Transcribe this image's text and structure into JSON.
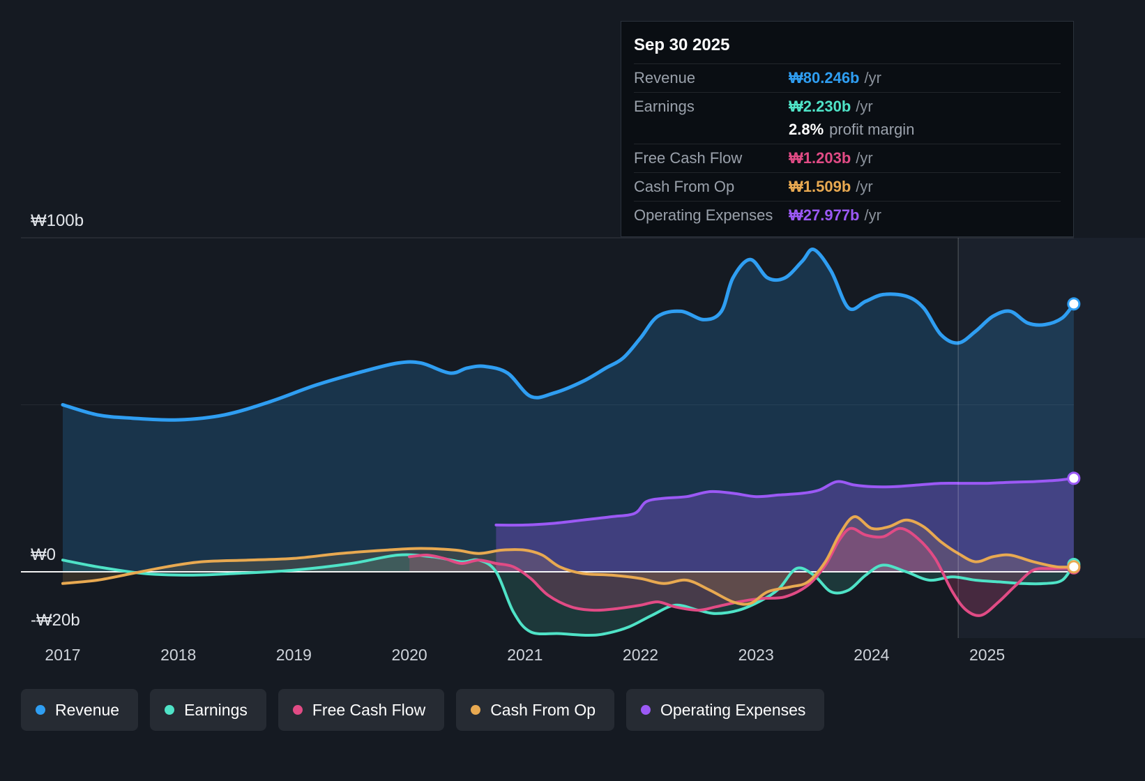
{
  "colors": {
    "background": "#151a22",
    "revenue": "#2f9ef2",
    "earnings": "#4fe3c7",
    "free_cash_flow": "#e14b85",
    "cash_from_op": "#e8a951",
    "operating_expenses": "#9b59f5"
  },
  "tooltip": {
    "date": "Sep 30 2025",
    "rows": [
      {
        "label": "Revenue",
        "value": "₩80.246b",
        "suffix": "/yr",
        "color": "#2f9ef2"
      },
      {
        "label": "Earnings",
        "value": "₩2.230b",
        "suffix": "/yr",
        "color": "#4fe3c7"
      },
      {
        "label": "Free Cash Flow",
        "value": "₩1.203b",
        "suffix": "/yr",
        "color": "#e14b85"
      },
      {
        "label": "Cash From Op",
        "value": "₩1.509b",
        "suffix": "/yr",
        "color": "#e8a951"
      },
      {
        "label": "Operating Expenses",
        "value": "₩27.977b",
        "suffix": "/yr",
        "color": "#9b59f5"
      }
    ],
    "margin": {
      "value": "2.8%",
      "label": "profit margin"
    }
  },
  "axes": {
    "y": [
      "₩100b",
      "₩0",
      "-₩20b"
    ],
    "x": [
      "2017",
      "2018",
      "2019",
      "2020",
      "2021",
      "2022",
      "2023",
      "2024",
      "2025"
    ]
  },
  "legend": {
    "items": [
      {
        "label": "Revenue",
        "color": "#2f9ef2"
      },
      {
        "label": "Earnings",
        "color": "#4fe3c7"
      },
      {
        "label": "Free Cash Flow",
        "color": "#e14b85"
      },
      {
        "label": "Cash From Op",
        "color": "#e8a951"
      },
      {
        "label": "Operating Expenses",
        "color": "#9b59f5"
      }
    ]
  },
  "chart_data": {
    "type": "line",
    "unit": "₩ billions per year",
    "x_range": [
      2017,
      2025.75
    ],
    "ylim": [
      -20,
      100
    ],
    "baseline": 0,
    "divider_x": 2024.75,
    "grid": "horizontal only",
    "legend_position": "bottom-left",
    "gridlines": [
      {
        "value": 100,
        "opacity": 0.14
      },
      {
        "value": 50,
        "opacity": 0.07
      }
    ],
    "series": [
      {
        "name": "Revenue",
        "color": "#2f9ef2",
        "fill_opacity": 0.2,
        "line_width": 5,
        "x": [
          2017.0,
          2017.3,
          2017.6,
          2018.0,
          2018.4,
          2018.8,
          2019.2,
          2019.6,
          2019.9,
          2020.1,
          2020.35,
          2020.5,
          2020.65,
          2020.85,
          2021.05,
          2021.25,
          2021.5,
          2021.7,
          2021.85,
          2022.0,
          2022.15,
          2022.35,
          2022.55,
          2022.7,
          2022.8,
          2022.95,
          2023.1,
          2023.25,
          2023.4,
          2023.5,
          2023.65,
          2023.8,
          2023.95,
          2024.1,
          2024.3,
          2024.45,
          2024.6,
          2024.75,
          2024.9,
          2025.05,
          2025.2,
          2025.35,
          2025.5,
          2025.65,
          2025.75
        ],
        "values": [
          50,
          47,
          46,
          45.5,
          47,
          51,
          56,
          60,
          62.5,
          62.5,
          59.5,
          61,
          61.5,
          59.5,
          52.5,
          53.5,
          57,
          61,
          64,
          70,
          76.5,
          78,
          75.5,
          78,
          88,
          93.5,
          88,
          88,
          93,
          96.5,
          90,
          79,
          81,
          83,
          82.5,
          79,
          71,
          68.5,
          72,
          76.5,
          78,
          74.5,
          74,
          76,
          80.2
        ]
      },
      {
        "name": "Operating Expenses",
        "color": "#9b59f5",
        "fill_opacity": 0.3,
        "line_width": 4,
        "x": [
          2020.75,
          2021.0,
          2021.25,
          2021.5,
          2021.75,
          2021.95,
          2022.05,
          2022.2,
          2022.4,
          2022.6,
          2022.8,
          2023.0,
          2023.2,
          2023.4,
          2023.55,
          2023.7,
          2023.85,
          2024.0,
          2024.2,
          2024.4,
          2024.6,
          2024.8,
          2025.0,
          2025.2,
          2025.4,
          2025.6,
          2025.75
        ],
        "values": [
          14,
          14,
          14.5,
          15.5,
          16.5,
          17.5,
          21,
          22,
          22.5,
          24,
          23.5,
          22.5,
          23,
          23.5,
          24.5,
          27,
          26,
          25.5,
          25.5,
          26,
          26.5,
          26.5,
          26.5,
          26.8,
          27,
          27.4,
          28
        ]
      },
      {
        "name": "Earnings",
        "color": "#4fe3c7",
        "fill_opacity": 0.15,
        "line_width": 4,
        "x": [
          2017.0,
          2017.3,
          2017.7,
          2018.1,
          2018.5,
          2019.0,
          2019.5,
          2019.9,
          2020.2,
          2020.45,
          2020.6,
          2020.75,
          2020.9,
          2021.05,
          2021.3,
          2021.55,
          2021.7,
          2021.9,
          2022.1,
          2022.3,
          2022.5,
          2022.65,
          2022.85,
          2023.05,
          2023.2,
          2023.35,
          2023.5,
          2023.65,
          2023.8,
          2023.95,
          2024.1,
          2024.3,
          2024.5,
          2024.7,
          2024.9,
          2025.1,
          2025.3,
          2025.5,
          2025.65,
          2025.75
        ],
        "values": [
          3.5,
          1.5,
          -0.5,
          -1,
          -0.5,
          0.5,
          2.5,
          5,
          4.5,
          3,
          3.5,
          0,
          -12,
          -18,
          -18.5,
          -19,
          -18.5,
          -16.5,
          -13,
          -10,
          -11.5,
          -12.5,
          -11.5,
          -8.5,
          -5,
          1,
          -1,
          -6,
          -5.5,
          -1,
          2,
          0,
          -2.5,
          -1.5,
          -2.5,
          -3,
          -3.5,
          -3.5,
          -2.5,
          2.2
        ]
      },
      {
        "name": "Free Cash Flow",
        "color": "#e14b85",
        "fill_opacity": 0.22,
        "line_width": 4,
        "x": [
          2020.0,
          2020.15,
          2020.3,
          2020.45,
          2020.6,
          2020.75,
          2020.9,
          2021.05,
          2021.2,
          2021.4,
          2021.6,
          2021.8,
          2022.0,
          2022.15,
          2022.3,
          2022.5,
          2022.65,
          2022.85,
          2023.05,
          2023.25,
          2023.45,
          2023.6,
          2023.72,
          2023.82,
          2023.95,
          2024.1,
          2024.25,
          2024.4,
          2024.55,
          2024.7,
          2024.82,
          2024.95,
          2025.1,
          2025.25,
          2025.4,
          2025.55,
          2025.75
        ],
        "values": [
          4.5,
          5,
          4,
          2.5,
          3.5,
          2.5,
          1.5,
          -2,
          -7,
          -10.5,
          -11.5,
          -11,
          -10,
          -9,
          -10.5,
          -11.5,
          -10.5,
          -9,
          -8,
          -7.5,
          -4,
          2,
          9.5,
          13,
          11,
          10.5,
          13,
          10,
          4,
          -6,
          -11.5,
          -13,
          -9,
          -4,
          0.5,
          1,
          1.2
        ]
      },
      {
        "name": "Cash From Op",
        "color": "#e8a951",
        "fill_opacity": 0.15,
        "line_width": 4,
        "x": [
          2017.0,
          2017.3,
          2017.6,
          2017.9,
          2018.2,
          2018.6,
          2019.0,
          2019.4,
          2019.8,
          2020.1,
          2020.4,
          2020.6,
          2020.8,
          2021.0,
          2021.15,
          2021.3,
          2021.5,
          2021.75,
          2022.0,
          2022.2,
          2022.4,
          2022.6,
          2022.8,
          2022.95,
          2023.1,
          2023.3,
          2023.45,
          2023.6,
          2023.72,
          2023.85,
          2024.0,
          2024.15,
          2024.3,
          2024.45,
          2024.6,
          2024.75,
          2024.9,
          2025.05,
          2025.2,
          2025.4,
          2025.6,
          2025.75
        ],
        "values": [
          -3.5,
          -2.5,
          -0.5,
          1.5,
          3,
          3.5,
          4,
          5.5,
          6.5,
          7,
          6.5,
          5.5,
          6.5,
          6.5,
          5,
          1.5,
          -0.5,
          -1,
          -2,
          -3.5,
          -2.5,
          -5.5,
          -9,
          -9.5,
          -6,
          -4.5,
          -3,
          3,
          11,
          16.5,
          13,
          13.5,
          15.5,
          13.5,
          9,
          5.5,
          3,
          4.5,
          5,
          3,
          1.5,
          1.5
        ]
      }
    ]
  }
}
